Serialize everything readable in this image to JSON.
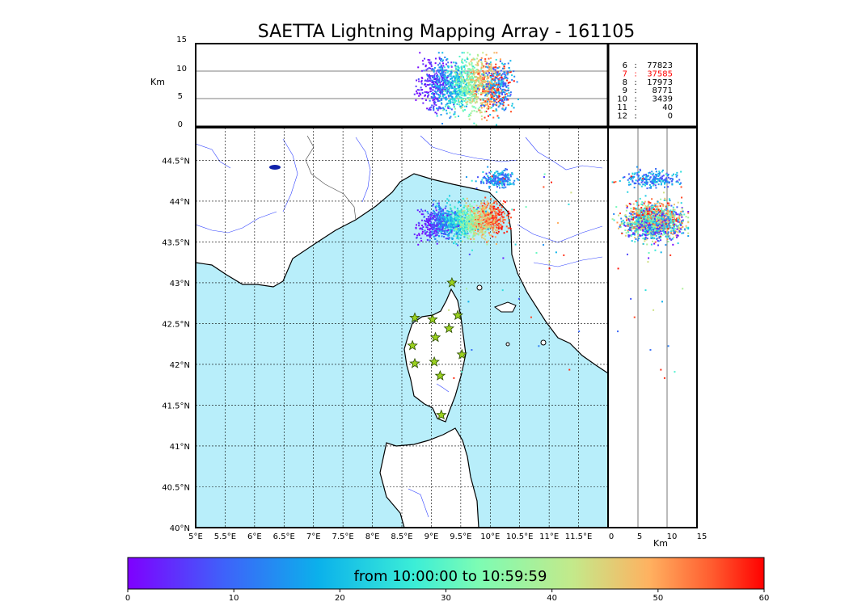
{
  "title": "SAETTA Lightning Mapping Array - 161105",
  "colors": {
    "sea": "#b8eefa",
    "land": "#ffffff",
    "river": "#3344ff",
    "station": "#9ad11f",
    "highlight": "#ff0000"
  },
  "chart_data": [
    {
      "type": "scatter",
      "panel": "altitude-vs-longitude",
      "ylabel": "Km",
      "ylim": [
        0,
        15
      ],
      "yticks": [
        "15",
        "10",
        "5",
        "0"
      ],
      "grid_lines_km": [
        5,
        10
      ],
      "station_counts": [
        {
          "stations": "6",
          "sep": ":",
          "count": "77823",
          "highlight": false
        },
        {
          "stations": "7",
          "sep": ":",
          "count": "37585",
          "highlight": true
        },
        {
          "stations": "8",
          "sep": ":",
          "count": "17973",
          "highlight": false
        },
        {
          "stations": "9",
          "sep": ":",
          "count": "8771",
          "highlight": false
        },
        {
          "stations": "10",
          "sep": ":",
          "count": "3439",
          "highlight": false
        },
        {
          "stations": "11",
          "sep": ":",
          "count": "40",
          "highlight": false
        },
        {
          "stations": "12",
          "sep": ":",
          "count": "0",
          "highlight": false
        }
      ]
    },
    {
      "type": "scatter",
      "panel": "plan-view-map",
      "xlim": [
        5.0,
        12.0
      ],
      "ylim": [
        40.0,
        44.9
      ],
      "xticks": [
        {
          "v": 5.0,
          "label": "5°E"
        },
        {
          "v": 5.5,
          "label": "5.5°E"
        },
        {
          "v": 6.0,
          "label": "6°E"
        },
        {
          "v": 6.5,
          "label": "6.5°E"
        },
        {
          "v": 7.0,
          "label": "7°E"
        },
        {
          "v": 7.5,
          "label": "7.5°E"
        },
        {
          "v": 8.0,
          "label": "8°E"
        },
        {
          "v": 8.5,
          "label": "8.5°E"
        },
        {
          "v": 9.0,
          "label": "9°E"
        },
        {
          "v": 9.5,
          "label": "9.5°E"
        },
        {
          "v": 10.0,
          "label": "10°E"
        },
        {
          "v": 10.5,
          "label": "10.5°E"
        },
        {
          "v": 11.0,
          "label": "11°E"
        },
        {
          "v": 11.5,
          "label": "11.5°E"
        }
      ],
      "yticks": [
        {
          "v": 44.5,
          "label": "44.5°N"
        },
        {
          "v": 44.0,
          "label": "44°N"
        },
        {
          "v": 43.5,
          "label": "43.5°N"
        },
        {
          "v": 43.0,
          "label": "43°N"
        },
        {
          "v": 42.5,
          "label": "42.5°N"
        },
        {
          "v": 42.0,
          "label": "42°N"
        },
        {
          "v": 41.5,
          "label": "41.5°N"
        },
        {
          "v": 41.0,
          "label": "41°N"
        },
        {
          "v": 40.5,
          "label": "40.5°N"
        },
        {
          "v": 40.0,
          "label": "40°N"
        }
      ],
      "grid": true,
      "stations": [
        [
          9.35,
          43.0
        ],
        [
          8.72,
          42.57
        ],
        [
          9.02,
          42.55
        ],
        [
          9.45,
          42.6
        ],
        [
          9.3,
          42.44
        ],
        [
          9.07,
          42.33
        ],
        [
          8.68,
          42.23
        ],
        [
          9.52,
          42.12
        ],
        [
          8.72,
          42.01
        ],
        [
          9.05,
          42.03
        ],
        [
          9.15,
          41.86
        ],
        [
          9.17,
          41.38
        ]
      ],
      "lightning_clusters": [
        {
          "center": [
            9.5,
            43.75
          ],
          "spread": [
            0.45,
            0.18
          ],
          "time_min": 0,
          "time_max": 60
        },
        {
          "center": [
            10.13,
            44.28
          ],
          "spread": [
            0.15,
            0.05
          ],
          "time_min": 5,
          "time_max": 25
        }
      ]
    },
    {
      "type": "scatter",
      "panel": "latitude-vs-altitude",
      "xlabel": "Km",
      "xlim": [
        0,
        15
      ],
      "xticks": [
        "0",
        "5",
        "10",
        "15"
      ],
      "grid_lines_km": [
        5,
        10
      ]
    },
    {
      "type": "heatmap",
      "panel": "time-colorbar",
      "label": "from 10:00:00 to 10:59:59",
      "range": [
        0,
        60
      ],
      "ticks": [
        "0",
        "10",
        "20",
        "30",
        "40",
        "50",
        "60"
      ]
    }
  ]
}
